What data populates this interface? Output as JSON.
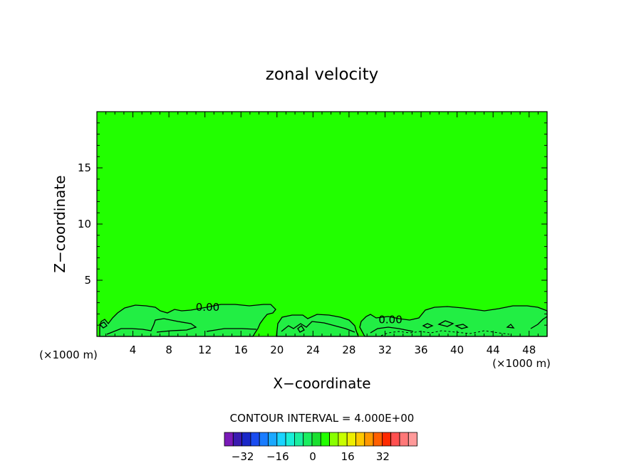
{
  "chart_data": {
    "type": "contour",
    "title": "zonal velocity",
    "xlabel": "X−coordinate",
    "ylabel": "Z−coordinate",
    "x_unit_left": "(×1000 m)",
    "x_unit_right": "(×1000 m)",
    "xlim": [
      0,
      50
    ],
    "ylim": [
      0,
      20
    ],
    "x_ticks": [
      4,
      8,
      12,
      16,
      20,
      24,
      28,
      32,
      36,
      40,
      44,
      48
    ],
    "y_ticks": [
      5,
      10,
      15
    ],
    "background_fill": "#22ff00",
    "inner_fill": "#22ee44",
    "contour_labels": [
      {
        "text": "0.00",
        "x": 12.3,
        "z": 2.6
      },
      {
        "text": "0.00",
        "x": 32.6,
        "z": 1.5
      }
    ],
    "contour_interval_text": "CONTOUR INTERVAL = 4.000E+00",
    "colorbar": {
      "colors": [
        "#7a1ab8",
        "#3a1ab0",
        "#1a28c8",
        "#1a4cf0",
        "#1a7cff",
        "#1aa8ff",
        "#1ad4ff",
        "#1aeed8",
        "#1aeea0",
        "#1aee60",
        "#1ae030",
        "#22ff00",
        "#88ff00",
        "#c8ff00",
        "#eeee00",
        "#ffc800",
        "#ff9800",
        "#ff6000",
        "#ff2a00",
        "#ff5050",
        "#ff7878",
        "#ff9a9a"
      ],
      "tick_labels": [
        "−32",
        "−16",
        "0",
        "16",
        "32"
      ],
      "tick_values": [
        -32,
        -16,
        0,
        16,
        32
      ]
    }
  }
}
